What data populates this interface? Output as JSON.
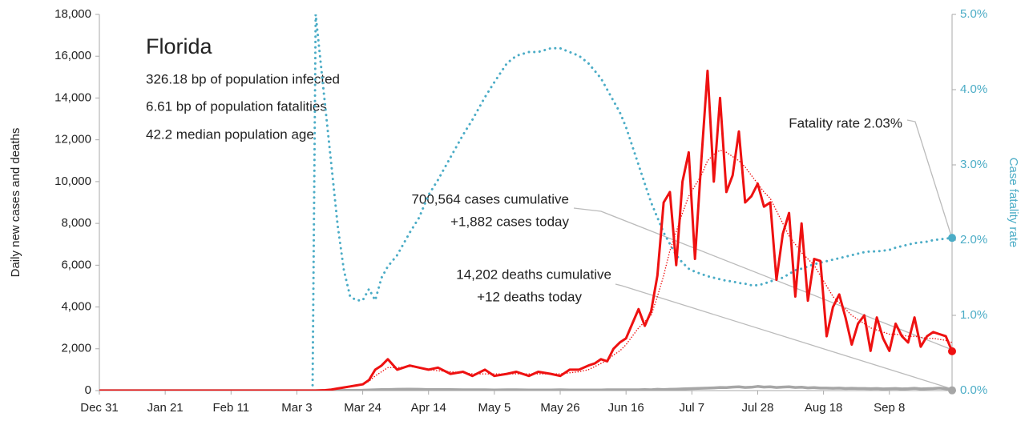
{
  "chart_data": {
    "type": "line",
    "title": "Florida",
    "info": [
      "326.18 bp of population infected",
      "6.61 bp of population fatalities",
      "42.2 median population age"
    ],
    "annotations": [
      "Fatality rate 2.03%",
      "700,564 cases cumulative",
      "+1,882 cases today",
      "14,202 deaths cumulative",
      "+12 deaths today"
    ],
    "ylabel": "Daily new cases and deaths",
    "y2label": "Case fatality rate",
    "xlim": [
      0,
      272
    ],
    "xticks": [
      {
        "value": 0,
        "label": "Dec 31"
      },
      {
        "value": 21,
        "label": "Jan 21"
      },
      {
        "value": 42,
        "label": "Feb 11"
      },
      {
        "value": 63,
        "label": "Mar 3"
      },
      {
        "value": 84,
        "label": "Mar 24"
      },
      {
        "value": 105,
        "label": "Apr 14"
      },
      {
        "value": 126,
        "label": "May 5"
      },
      {
        "value": 147,
        "label": "May 26"
      },
      {
        "value": 168,
        "label": "Jun 16"
      },
      {
        "value": 189,
        "label": "Jul 7"
      },
      {
        "value": 210,
        "label": "Jul 28"
      },
      {
        "value": 231,
        "label": "Aug 18"
      },
      {
        "value": 252,
        "label": "Sep 8"
      }
    ],
    "ylim": [
      0,
      18000
    ],
    "yticks": [
      0,
      {
        "value": 2000,
        "label": "2,000"
      },
      {
        "value": 4000,
        "label": "4,000"
      },
      {
        "value": 6000,
        "label": "6,000"
      },
      {
        "value": 8000,
        "label": "8,000"
      },
      {
        "value": 10000,
        "label": "10,000"
      },
      {
        "value": 12000,
        "label": "12,000"
      },
      {
        "value": 14000,
        "label": "14,000"
      },
      {
        "value": 16000,
        "label": "16,000"
      },
      {
        "value": 18000,
        "label": "18,000"
      }
    ],
    "y2lim": [
      0,
      5
    ],
    "y2ticks": [
      {
        "value": 0,
        "label": "0.0%"
      },
      {
        "value": 1,
        "label": "1.0%"
      },
      {
        "value": 2,
        "label": "2.0%"
      },
      {
        "value": 3,
        "label": "3.0%"
      },
      {
        "value": 4,
        "label": "4.0%"
      },
      {
        "value": 5,
        "label": "5.0%"
      }
    ],
    "grid": false,
    "x": [
      0,
      60,
      66,
      68,
      69,
      72,
      74,
      76,
      78,
      80,
      82,
      84,
      86,
      88,
      90,
      92,
      95,
      99,
      102,
      105,
      108,
      112,
      116,
      119,
      123,
      126,
      130,
      133,
      137,
      140,
      144,
      147,
      150,
      153,
      156,
      158,
      160,
      162,
      164,
      166,
      168,
      170,
      172,
      174,
      176,
      178,
      180,
      182,
      184,
      186,
      188,
      190,
      192,
      194,
      196,
      198,
      200,
      202,
      204,
      206,
      208,
      210,
      212,
      214,
      216,
      218,
      220,
      222,
      224,
      226,
      228,
      230,
      232,
      234,
      236,
      238,
      240,
      242,
      244,
      246,
      248,
      250,
      252,
      254,
      256,
      258,
      260,
      262,
      264,
      266,
      268,
      270,
      272
    ],
    "series": [
      {
        "color": "#a6a6a6",
        "style": "solid",
        "width": 3.5,
        "endpoint": true,
        "values": [
          0,
          0,
          0,
          0,
          0,
          2,
          3,
          5,
          6,
          10,
          15,
          20,
          30,
          40,
          50,
          50,
          60,
          70,
          60,
          50,
          50,
          50,
          40,
          40,
          40,
          30,
          40,
          40,
          30,
          30,
          30,
          40,
          30,
          30,
          30,
          30,
          30,
          40,
          40,
          40,
          40,
          40,
          40,
          50,
          40,
          60,
          50,
          60,
          70,
          80,
          90,
          100,
          110,
          120,
          130,
          150,
          140,
          170,
          180,
          150,
          160,
          200,
          170,
          180,
          150,
          170,
          180,
          150,
          160,
          130,
          140,
          120,
          120,
          110,
          120,
          100,
          110,
          100,
          100,
          90,
          100,
          80,
          90,
          100,
          80,
          90,
          110,
          80,
          90,
          100,
          120,
          90,
          12
        ]
      },
      {
        "color": "#4bacc6",
        "style": "dotted",
        "width": 3,
        "axis": "y2",
        "endpoint": true,
        "values": [
          null,
          null,
          null,
          0,
          5,
          3.8,
          3.0,
          2.2,
          1.6,
          1.25,
          1.2,
          1.2,
          1.35,
          1.2,
          1.5,
          1.65,
          1.8,
          2.1,
          2.3,
          2.6,
          2.8,
          3.1,
          3.4,
          3.6,
          3.9,
          4.1,
          4.35,
          4.45,
          4.5,
          4.5,
          4.55,
          4.55,
          4.5,
          4.45,
          4.35,
          4.25,
          4.15,
          4.0,
          3.85,
          3.7,
          3.5,
          3.25,
          3.0,
          2.75,
          2.5,
          2.3,
          2.1,
          1.95,
          1.8,
          1.7,
          1.62,
          1.58,
          1.55,
          1.52,
          1.5,
          1.48,
          1.46,
          1.45,
          1.43,
          1.42,
          1.4,
          1.4,
          1.42,
          1.45,
          1.48,
          1.5,
          1.55,
          1.6,
          1.62,
          1.65,
          1.68,
          1.7,
          1.72,
          1.74,
          1.76,
          1.78,
          1.8,
          1.82,
          1.84,
          1.85,
          1.85,
          1.86,
          1.87,
          1.9,
          1.92,
          1.94,
          1.96,
          1.97,
          1.98,
          2.0,
          2.01,
          2.02,
          2.03
        ]
      },
      {
        "color": "#ee1111",
        "style": "dotted",
        "width": 1.5,
        "values": [
          0,
          0,
          0,
          0,
          0,
          15,
          40,
          80,
          120,
          180,
          230,
          300,
          450,
          700,
          900,
          1100,
          1100,
          1150,
          1100,
          1000,
          950,
          900,
          850,
          800,
          800,
          800,
          800,
          800,
          800,
          800,
          800,
          800,
          850,
          900,
          1000,
          1150,
          1300,
          1450,
          1700,
          1900,
          2200,
          2600,
          3000,
          3300,
          3600,
          4500,
          5500,
          6700,
          7600,
          8500,
          9300,
          9800,
          10300,
          11000,
          11300,
          11500,
          11400,
          11200,
          11000,
          10700,
          10300,
          9900,
          9500,
          9200,
          8600,
          8000,
          7400,
          7000,
          6600,
          6300,
          6000,
          5500,
          5000,
          4500,
          4200,
          3900,
          3600,
          3400,
          3200,
          3000,
          2900,
          2800,
          2700,
          2700,
          2650,
          2600,
          2600,
          2550,
          2500,
          2500,
          2450,
          2400,
          2300
        ]
      },
      {
        "color": "#ee1111",
        "style": "solid",
        "width": 3,
        "endpoint": true,
        "values": [
          0,
          0,
          0,
          0,
          0,
          20,
          50,
          100,
          150,
          200,
          250,
          300,
          500,
          1000,
          1200,
          1500,
          1000,
          1200,
          1100,
          1000,
          1100,
          800,
          900,
          700,
          1000,
          700,
          800,
          900,
          700,
          900,
          800,
          700,
          1000,
          1000,
          1200,
          1300,
          1500,
          1400,
          2000,
          2300,
          2500,
          3200,
          3900,
          3100,
          3800,
          5500,
          9000,
          9500,
          6000,
          10000,
          11400,
          6300,
          11000,
          15300,
          10000,
          14000,
          9500,
          10300,
          12400,
          9000,
          9300,
          9900,
          8800,
          9000,
          5300,
          7500,
          8500,
          4500,
          8000,
          4300,
          6300,
          6200,
          2600,
          4000,
          4600,
          3500,
          2200,
          3200,
          3600,
          1900,
          3500,
          2500,
          1900,
          3200,
          2600,
          2300,
          3500,
          2100,
          2600,
          2800,
          2700,
          2600,
          1882
        ]
      }
    ]
  }
}
